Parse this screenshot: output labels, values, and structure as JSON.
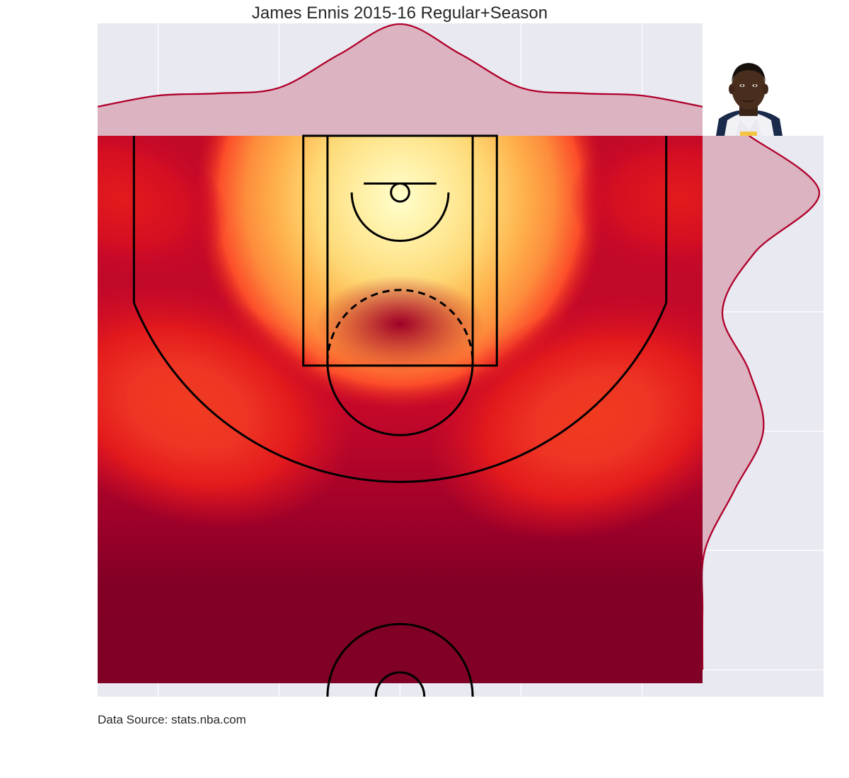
{
  "chart_data": {
    "type": "heatmap",
    "title": "James Ennis 2015-16 Regular+Season",
    "source_note": "Data Source: stats.nba.com",
    "colormap": "YlOrRd",
    "grid": true,
    "xlim": [
      -250,
      250
    ],
    "ylim": [
      422.5,
      -47.5
    ],
    "x_gridlines": [
      -200,
      -100,
      0,
      100,
      200
    ],
    "y_gridlines": [
      0,
      100,
      200,
      300,
      400
    ],
    "density_hotspots": [
      {
        "x": 0,
        "y": 5,
        "intensity": 1.0
      },
      {
        "x": -175,
        "y": 180,
        "intensity": 0.42
      },
      {
        "x": 160,
        "y": 190,
        "intensity": 0.4
      },
      {
        "x": 230,
        "y": 5,
        "intensity": 0.3
      },
      {
        "x": -230,
        "y": 5,
        "intensity": 0.24
      },
      {
        "x": 0,
        "y": 110,
        "intensity": 0.12
      }
    ],
    "marginal_x": {
      "fill_color": "#dcb3c1",
      "line_color": "#b0002a",
      "x": [
        -250,
        -200,
        -150,
        -100,
        -50,
        0,
        50,
        100,
        150,
        200,
        250
      ],
      "density": [
        0.26,
        0.36,
        0.38,
        0.43,
        0.73,
        1.0,
        0.73,
        0.43,
        0.38,
        0.36,
        0.26
      ]
    },
    "marginal_y": {
      "fill_color": "#dcb3c1",
      "line_color": "#b0002a",
      "y": [
        -47.5,
        0,
        50,
        100,
        150,
        200,
        250,
        300,
        350,
        400
      ],
      "density": [
        0.4,
        1.0,
        0.45,
        0.17,
        0.4,
        0.52,
        0.27,
        0.02,
        0.0,
        0.0
      ]
    },
    "player_image": "player-headshot"
  },
  "colors": {
    "axes_bg": "#e8e9f1",
    "grid": "#ffffff",
    "court_lines": "#000000",
    "heat_low": "#800026",
    "heat_mid": "#e31a1c",
    "heat_high": "#ffffcc"
  }
}
